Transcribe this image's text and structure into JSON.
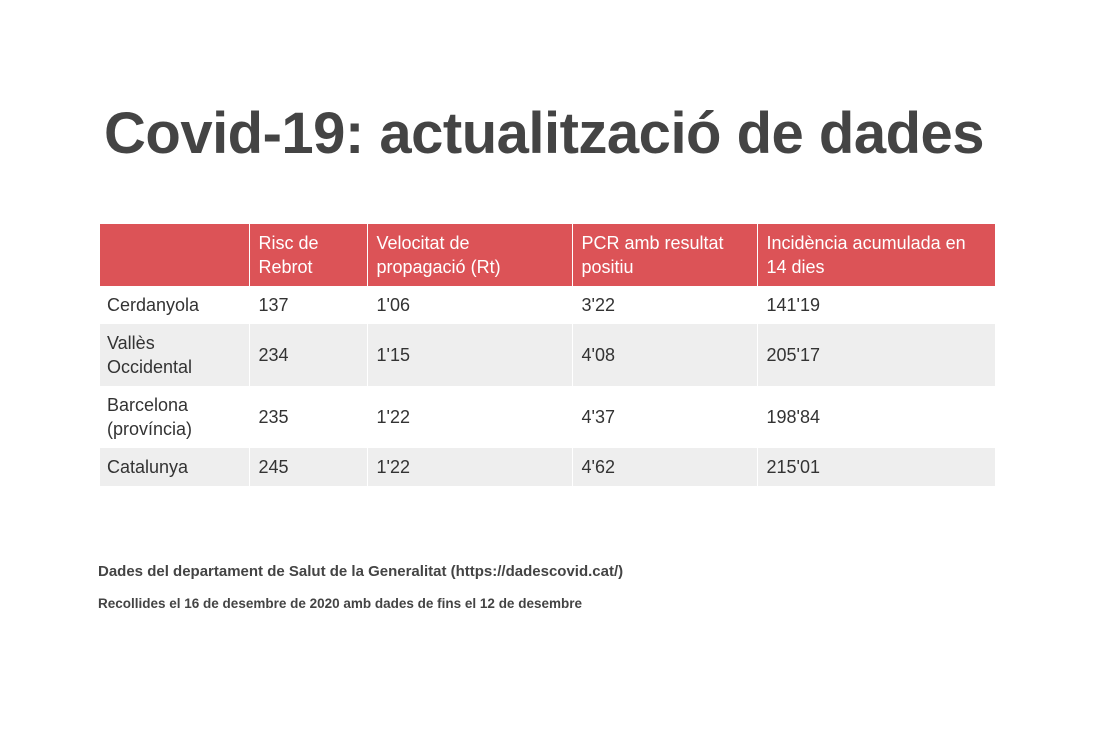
{
  "title": "Covid-19: actualització de dades",
  "table": {
    "headers": [
      "",
      "Risc de Rebrot",
      "Velocitat de propagació (Rt)",
      "PCR amb resultat positiu",
      "Incidència acumulada en 14 dies"
    ],
    "rows": [
      [
        "Cerdanyola",
        "137",
        "1'06",
        "3'22",
        "141'19"
      ],
      [
        "Vallès Occidental",
        "234",
        "1'15",
        "4'08",
        "205'17"
      ],
      [
        "Barcelona (província)",
        "235",
        "1'22",
        "4'37",
        "198'84"
      ],
      [
        "Catalunya",
        "245",
        "1'22",
        "4'62",
        "215'01"
      ]
    ]
  },
  "footer": {
    "source": "Dades del departament de Salut de la Generalitat (https://dadescovid.cat/)",
    "collected": "Recollides el 16 de desembre de 2020 amb dades de fins el 12 de desembre"
  },
  "colors": {
    "header_bg": "#dc5357",
    "stripe_bg": "#eeeeee",
    "title_text": "#444444"
  }
}
